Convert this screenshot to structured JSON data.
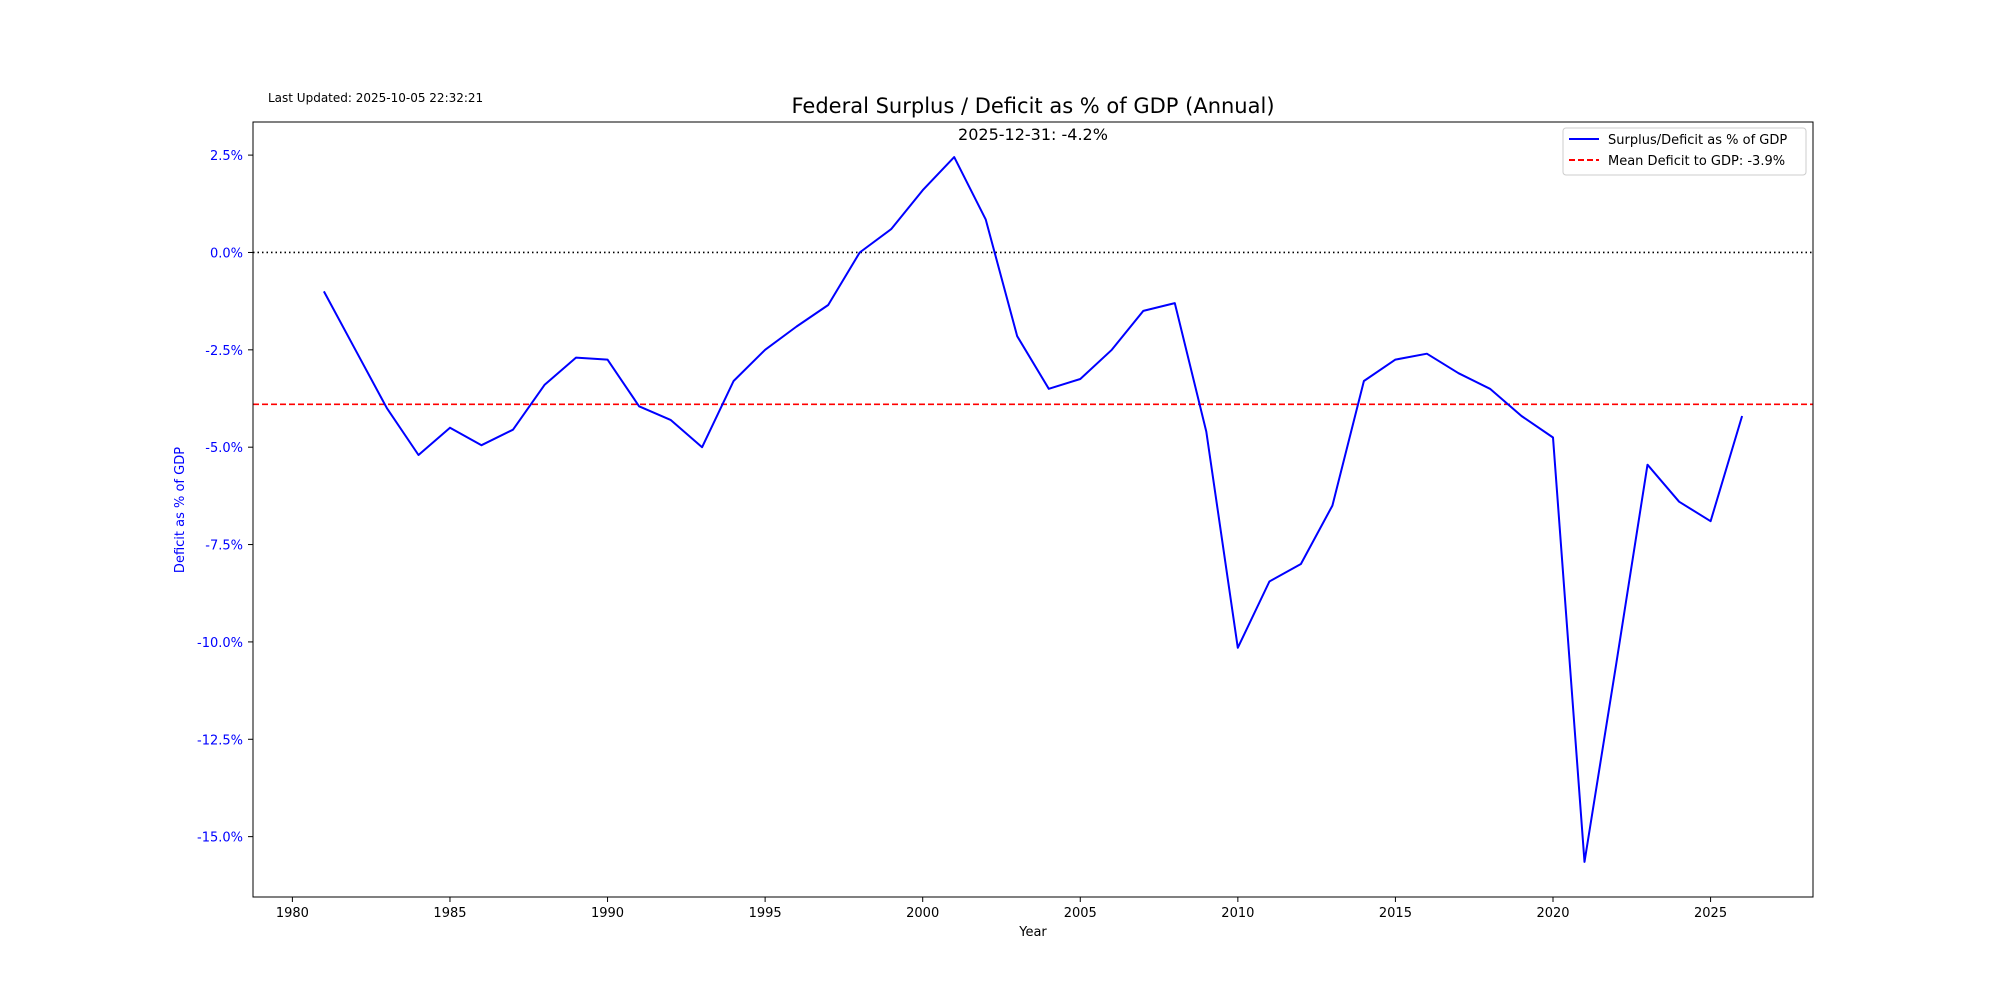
{
  "last_updated": "Last Updated: 2025-10-05 22:32:21",
  "chart_data": {
    "type": "line",
    "title": "Federal Surplus / Deficit as % of GDP (Annual)",
    "subtitle": "2025-12-31: -4.2%",
    "xlabel": "Year",
    "ylabel": "Deficit as % of GDP",
    "xlim": [
      1978.75,
      2028.25
    ],
    "ylim": [
      -16.55,
      3.35
    ],
    "x_ticks": [
      1980,
      1985,
      1990,
      1995,
      2000,
      2005,
      2010,
      2015,
      2020,
      2025
    ],
    "x_tick_labels": [
      "1980",
      "1985",
      "1990",
      "1995",
      "2000",
      "2005",
      "2010",
      "2015",
      "2020",
      "2025"
    ],
    "y_ticks": [
      2.5,
      0,
      -2.5,
      -5,
      -7.5,
      -10,
      -12.5,
      -15
    ],
    "y_tick_labels": [
      "2.5%",
      "0.0%",
      "-2.5%",
      "-5.0%",
      "-7.5%",
      "-10.0%",
      "-12.5%",
      "-15.0%"
    ],
    "grid": false,
    "legend_position": "top-right",
    "colors": {
      "series": "#0000ff",
      "mean": "#ff0000",
      "zero": "#000000",
      "ylabel": "#0000ff"
    },
    "series": [
      {
        "name": "Surplus/Deficit as % of GDP",
        "x": [
          1981,
          1982,
          1983,
          1984,
          1985,
          1986,
          1987,
          1988,
          1989,
          1990,
          1991,
          1992,
          1993,
          1994,
          1995,
          1996,
          1997,
          1998,
          1999,
          2000,
          2001,
          2002,
          2003,
          2004,
          2005,
          2006,
          2007,
          2008,
          2009,
          2010,
          2011,
          2012,
          2013,
          2014,
          2015,
          2016,
          2017,
          2018,
          2019,
          2020,
          2021,
          2022,
          2023,
          2024,
          2025,
          2026
        ],
        "values": [
          -1.0,
          -2.5,
          -4.0,
          -5.2,
          -4.5,
          -4.95,
          -4.55,
          -3.4,
          -2.7,
          -2.75,
          -3.95,
          -4.3,
          -5.0,
          -3.3,
          -2.5,
          -1.9,
          -1.35,
          0.0,
          0.6,
          1.6,
          2.45,
          0.85,
          -2.15,
          -3.5,
          -3.25,
          -2.5,
          -1.5,
          -1.3,
          -4.6,
          -10.15,
          -8.45,
          -8.0,
          -6.5,
          -3.3,
          -2.75,
          -2.6,
          -3.1,
          -3.5,
          -4.2,
          -4.75,
          -15.65,
          -10.6,
          -5.45,
          -6.4,
          -6.9,
          -4.2
        ]
      }
    ],
    "mean": {
      "name": "Mean Deficit to GDP: -3.9%",
      "value": -3.9
    },
    "zero_line": 0
  }
}
